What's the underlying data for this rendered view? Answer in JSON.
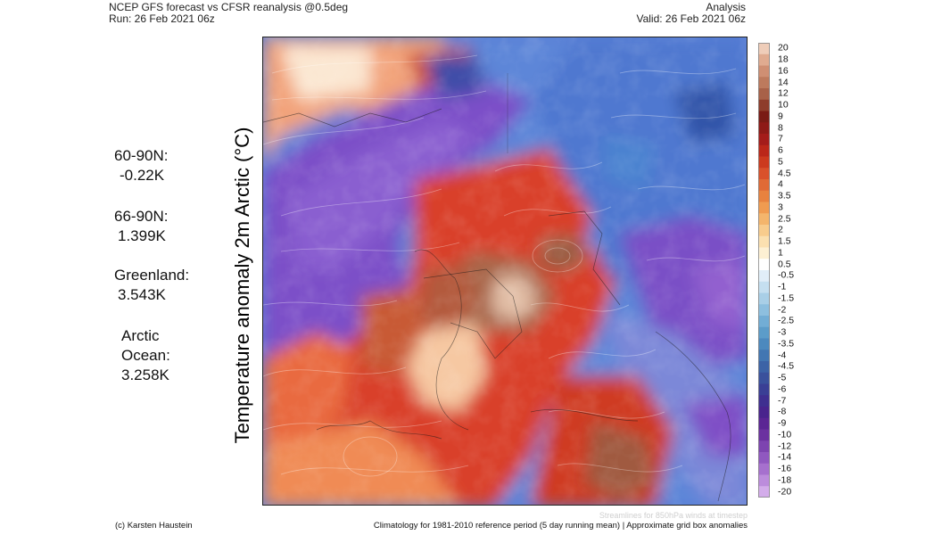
{
  "header": {
    "title": "NCEP GFS forecast vs CFSR reanalysis @0.5deg",
    "run": "Run: 26 Feb 2021 06z",
    "mode": "Analysis",
    "valid": "Valid: 26 Feb 2021 06z"
  },
  "vertical_title": "Temperature anomaly 2m Arctic (°C)",
  "stats": [
    {
      "label": "60-90N:",
      "value": "-0.22K"
    },
    {
      "label": "66-90N:",
      "value": "1.399K"
    },
    {
      "label": "Greenland:",
      "value": "3.543K"
    },
    {
      "label": "Arctic\nOcean:",
      "value": "3.258K"
    }
  ],
  "colorbar": {
    "ticks": [
      "20",
      "18",
      "16",
      "14",
      "12",
      "10",
      "9",
      "8",
      "7",
      "6",
      "5",
      "4.5",
      "4",
      "3.5",
      "3",
      "2.5",
      "2",
      "1.5",
      "1",
      "0.5",
      "-0.5",
      "-1",
      "-1.5",
      "-2",
      "-2.5",
      "-3",
      "-3.5",
      "-4",
      "-4.5",
      "-5",
      "-6",
      "-7",
      "-8",
      "-9",
      "-10",
      "-12",
      "-14",
      "-16",
      "-18",
      "-20"
    ],
    "colors": [
      "#efcdb9",
      "#e0ab90",
      "#cf8f73",
      "#bd7a5d",
      "#a86148",
      "#8e3d2b",
      "#7a1b15",
      "#8e1a17",
      "#a41c1a",
      "#bb2719",
      "#cc3a1e",
      "#d9512b",
      "#e06a36",
      "#e8823f",
      "#f09b50",
      "#f4b56c",
      "#f8cc8d",
      "#fbe0b0",
      "#fdf0d3",
      "#ffffff",
      "#e1eef8",
      "#c5dff0",
      "#a9cfe7",
      "#8dbfdf",
      "#72add5",
      "#5c9cc9",
      "#4c89be",
      "#4276b2",
      "#3c63a6",
      "#3a519c",
      "#3a3f95",
      "#3f2f90",
      "#49248d",
      "#5b2594",
      "#6b31a0",
      "#7d44b0",
      "#9058c0",
      "#a670ce",
      "#bc8cdc",
      "#d3acea"
    ]
  },
  "footer": {
    "credit": "(c) Karsten Haustein",
    "climatology": "Climatology for 1981-2010 reference period (5 day running mean) | Approximate grid box anomalies",
    "streamlines": "Streamlines for 850hPa winds at timestep"
  }
}
